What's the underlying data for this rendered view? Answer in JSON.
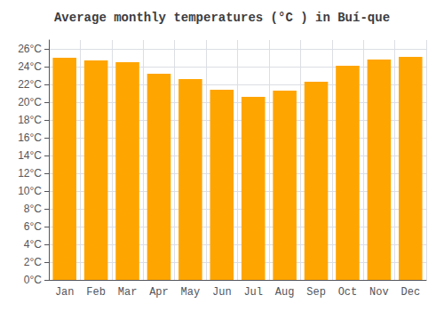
{
  "chart_data": {
    "type": "bar",
    "title": "Average monthly temperatures (°C ) in Buí-que",
    "categories": [
      "Jan",
      "Feb",
      "Mar",
      "Apr",
      "May",
      "Jun",
      "Jul",
      "Aug",
      "Sep",
      "Oct",
      "Nov",
      "Dec"
    ],
    "values": [
      25.0,
      24.7,
      24.5,
      23.2,
      22.6,
      21.4,
      20.6,
      21.3,
      22.3,
      24.1,
      24.8,
      25.1
    ],
    "color": "#FFA500",
    "ylim": [
      0,
      27
    ],
    "yticks": [
      {
        "value": 0,
        "label": "0°C"
      },
      {
        "value": 2,
        "label": "2°C"
      },
      {
        "value": 4,
        "label": "4°C"
      },
      {
        "value": 6,
        "label": "6°C"
      },
      {
        "value": 8,
        "label": "8°C"
      },
      {
        "value": 10,
        "label": "10°C"
      },
      {
        "value": 12,
        "label": "12°C"
      },
      {
        "value": 14,
        "label": "14°C"
      },
      {
        "value": 16,
        "label": "16°C"
      },
      {
        "value": 18,
        "label": "18°C"
      },
      {
        "value": 20,
        "label": "20°C"
      },
      {
        "value": 22,
        "label": "22°C"
      },
      {
        "value": 24,
        "label": "24°C"
      },
      {
        "value": 26,
        "label": "26°C"
      }
    ],
    "grid": true
  }
}
